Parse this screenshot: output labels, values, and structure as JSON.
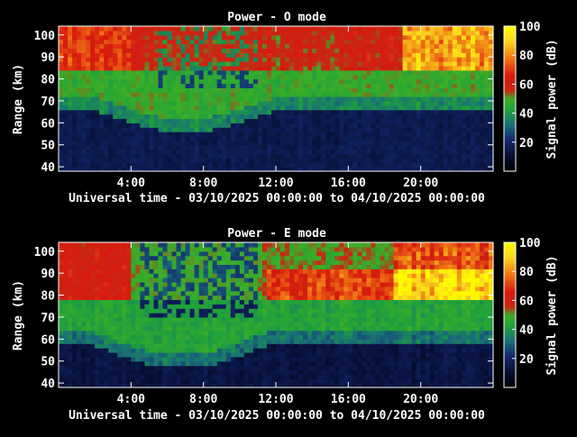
{
  "chart_data": [
    {
      "type": "heatmap",
      "title": "Power - O mode",
      "xlabel": "Universal time - 03/10/2025 00:00:00 to 04/10/2025 00:00:00",
      "ylabel": "Range (km)",
      "colorbar_label": "Signal power (dB)",
      "x_range_hours": [
        0,
        24
      ],
      "x_ticks": [
        "4:00",
        "8:00",
        "12:00",
        "16:00",
        "20:00"
      ],
      "x_tick_hours": [
        4,
        8,
        12,
        16,
        20
      ],
      "ylim": [
        38,
        104
      ],
      "y_ticks": [
        40,
        50,
        60,
        70,
        80,
        90,
        100
      ],
      "clim": [
        0,
        100
      ],
      "cbar_ticks": [
        20,
        40,
        60,
        80,
        100
      ],
      "colormap": "black-blue-green-red-yellow",
      "data_description": [
        {
          "range_km": [
            85,
            104
          ],
          "power_db": 70,
          "hours": [
            0,
            24
          ],
          "note": "red echo layer, strongest after 20:00"
        },
        {
          "range_km": [
            75,
            85
          ],
          "power_db": 45,
          "hours": [
            0,
            24
          ],
          "note": "green band"
        },
        {
          "range_km": [
            38,
            75
          ],
          "power_db": 15,
          "hours": [
            0,
            24
          ],
          "note": "noise floor"
        }
      ]
    },
    {
      "type": "heatmap",
      "title": "Power - E mode",
      "xlabel": "Universal time - 03/10/2025 00:00:00 to 04/10/2025 00:00:00",
      "ylabel": "Range (km)",
      "colorbar_label": "Signal power (dB)",
      "x_range_hours": [
        0,
        24
      ],
      "x_ticks": [
        "4:00",
        "8:00",
        "12:00",
        "16:00",
        "20:00"
      ],
      "x_tick_hours": [
        4,
        8,
        12,
        16,
        20
      ],
      "ylim": [
        38,
        104
      ],
      "y_ticks": [
        40,
        50,
        60,
        70,
        80,
        90,
        100
      ],
      "clim": [
        0,
        100
      ],
      "cbar_ticks": [
        20,
        40,
        60,
        80,
        100
      ],
      "colormap": "black-blue-green-red-yellow",
      "data_description": [
        {
          "range_km": [
            78,
            90
          ],
          "power_db": 68,
          "hours": [
            12,
            24
          ],
          "note": "red echo layer"
        },
        {
          "range_km": [
            65,
            85
          ],
          "power_db": 40,
          "hours": [
            0,
            24
          ],
          "note": "green band"
        },
        {
          "range_km": [
            38,
            65
          ],
          "power_db": 12,
          "hours": [
            0,
            24
          ],
          "note": "noise floor"
        }
      ]
    }
  ]
}
